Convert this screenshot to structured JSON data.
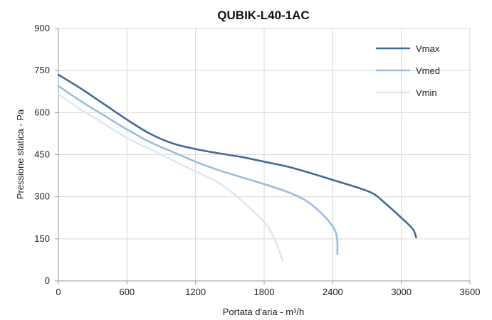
{
  "chart_data": {
    "type": "line",
    "title": "QUBIK-L40-1AC",
    "xlabel": "Portata d'aria - m³/h",
    "ylabel": "Pressione statica - Pa",
    "xlim": [
      0,
      3600
    ],
    "ylim": [
      0,
      900
    ],
    "xticks": [
      "0",
      "600",
      "1200",
      "1800",
      "2400",
      "3000",
      "3600"
    ],
    "yticks": [
      "0",
      "150",
      "300",
      "450",
      "600",
      "750",
      "900"
    ],
    "grid": true,
    "legend_position": "top-right",
    "series": [
      {
        "name": "Vmax",
        "color": "#3f6b9e",
        "points": [
          [
            0,
            735
          ],
          [
            200,
            685
          ],
          [
            400,
            630
          ],
          [
            600,
            575
          ],
          [
            800,
            525
          ],
          [
            1000,
            490
          ],
          [
            1200,
            470
          ],
          [
            1400,
            455
          ],
          [
            1600,
            442
          ],
          [
            1800,
            425
          ],
          [
            2000,
            408
          ],
          [
            2200,
            385
          ],
          [
            2400,
            360
          ],
          [
            2600,
            335
          ],
          [
            2750,
            312
          ],
          [
            2850,
            280
          ],
          [
            3000,
            225
          ],
          [
            3100,
            185
          ],
          [
            3130,
            155
          ]
        ]
      },
      {
        "name": "Vmed",
        "color": "#9bbde3",
        "points": [
          [
            0,
            695
          ],
          [
            200,
            640
          ],
          [
            400,
            590
          ],
          [
            600,
            540
          ],
          [
            800,
            495
          ],
          [
            1000,
            460
          ],
          [
            1200,
            425
          ],
          [
            1400,
            395
          ],
          [
            1600,
            370
          ],
          [
            1800,
            345
          ],
          [
            2000,
            318
          ],
          [
            2150,
            290
          ],
          [
            2250,
            260
          ],
          [
            2350,
            220
          ],
          [
            2420,
            180
          ],
          [
            2440,
            140
          ],
          [
            2440,
            95
          ]
        ]
      },
      {
        "name": "Vmin",
        "color": "#dde8f3",
        "points": [
          [
            0,
            665
          ],
          [
            200,
            610
          ],
          [
            400,
            560
          ],
          [
            600,
            510
          ],
          [
            800,
            470
          ],
          [
            1000,
            430
          ],
          [
            1200,
            390
          ],
          [
            1400,
            350
          ],
          [
            1550,
            305
          ],
          [
            1700,
            250
          ],
          [
            1820,
            200
          ],
          [
            1900,
            140
          ],
          [
            1960,
            75
          ]
        ]
      }
    ]
  }
}
